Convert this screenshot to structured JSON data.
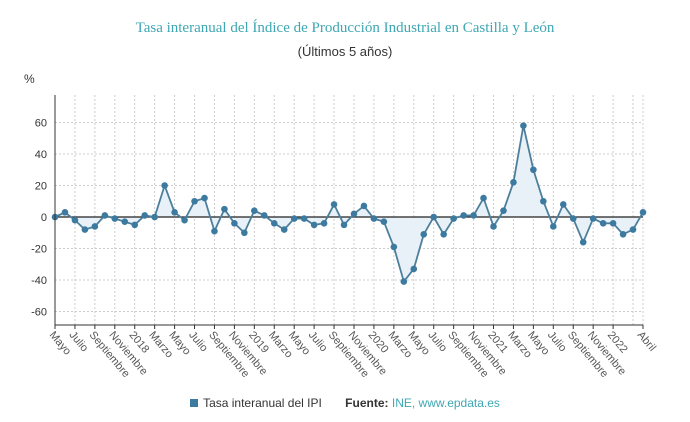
{
  "chart_data": {
    "type": "line",
    "title": "Tasa interanual del Índice de Producción Industrial en Castilla y León",
    "subtitle": "(Últimos 5 años)",
    "ylabel": "%",
    "ylim": [
      -67,
      77
    ],
    "yticks": [
      -60,
      -40,
      -20,
      0,
      20,
      40,
      60
    ],
    "grid": true,
    "colors": {
      "series": "#3d7aa0",
      "line": "#4d7f9c",
      "fill": "#e8f1f8",
      "title": "#3ea7b3"
    },
    "x_tick_labels": [
      {
        "i": 0,
        "label": "Mayo"
      },
      {
        "i": 2,
        "label": "Julio"
      },
      {
        "i": 4,
        "label": "Septiembre"
      },
      {
        "i": 6,
        "label": "Noviembre"
      },
      {
        "i": 8,
        "label": "2018"
      },
      {
        "i": 10,
        "label": "Marzo"
      },
      {
        "i": 12,
        "label": "Mayo"
      },
      {
        "i": 14,
        "label": "Julio"
      },
      {
        "i": 16,
        "label": "Septiembre"
      },
      {
        "i": 18,
        "label": "Noviembre"
      },
      {
        "i": 20,
        "label": "2019"
      },
      {
        "i": 22,
        "label": "Marzo"
      },
      {
        "i": 24,
        "label": "Mayo"
      },
      {
        "i": 26,
        "label": "Julio"
      },
      {
        "i": 28,
        "label": "Septiembre"
      },
      {
        "i": 30,
        "label": "Noviembre"
      },
      {
        "i": 32,
        "label": "2020"
      },
      {
        "i": 34,
        "label": "Marzo"
      },
      {
        "i": 36,
        "label": "Mayo"
      },
      {
        "i": 38,
        "label": "Julio"
      },
      {
        "i": 40,
        "label": "Septiembre"
      },
      {
        "i": 42,
        "label": "Noviembre"
      },
      {
        "i": 44,
        "label": "2021"
      },
      {
        "i": 46,
        "label": "Marzo"
      },
      {
        "i": 48,
        "label": "Mayo"
      },
      {
        "i": 50,
        "label": "Julio"
      },
      {
        "i": 52,
        "label": "Septiembre"
      },
      {
        "i": 54,
        "label": "Noviembre"
      },
      {
        "i": 56,
        "label": "2022"
      },
      {
        "i": 59,
        "label": "Abril"
      }
    ],
    "series": [
      {
        "name": "Tasa interanual del IPI",
        "values": [
          0,
          3,
          -2,
          -8,
          -6,
          1,
          -1,
          -3,
          -5,
          1,
          0,
          20,
          3,
          -2,
          10,
          12,
          -9,
          5,
          -4,
          -10,
          4,
          1,
          -4,
          -8,
          -1,
          -1,
          -5,
          -4,
          8,
          -5,
          2,
          7,
          -1,
          -3,
          -19,
          -41,
          -33,
          -11,
          0,
          -11,
          -1,
          1,
          1,
          12,
          -6,
          4,
          22,
          58,
          30,
          10,
          -6,
          8,
          -1,
          -16,
          -1,
          -4,
          -4,
          -11,
          -8,
          3
        ]
      }
    ],
    "legend": "bottom"
  },
  "source": {
    "label": "Fuente:",
    "text": "INE, www.epdata.es"
  }
}
